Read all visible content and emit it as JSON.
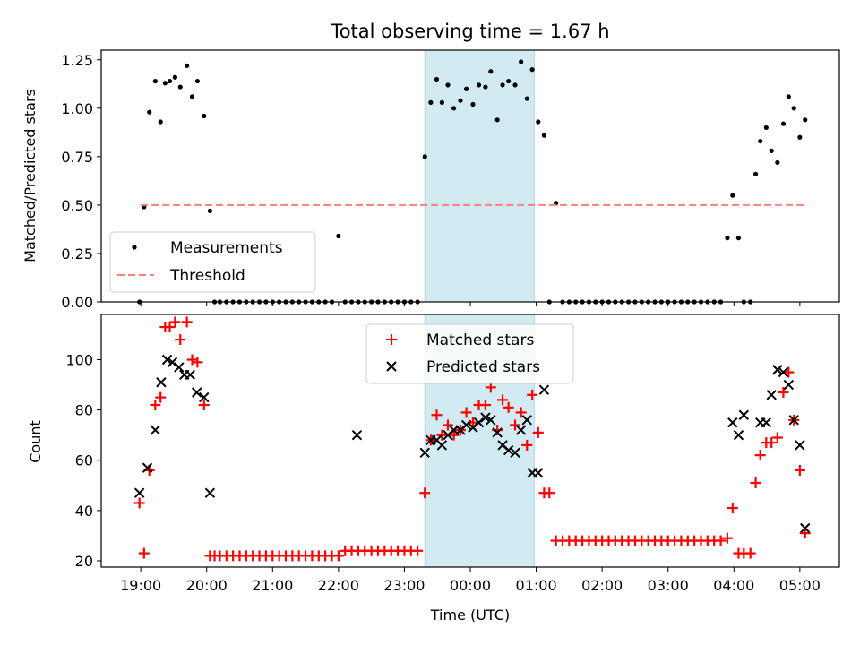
{
  "figure": {
    "title": "Total observing time = 1.67 h",
    "xlabel": "Time (UTC)",
    "x_tick_labels": [
      "19:00",
      "20:00",
      "21:00",
      "22:00",
      "23:00",
      "00:00",
      "01:00",
      "02:00",
      "03:00",
      "04:00",
      "05:00"
    ],
    "shaded_interval_color": "#add8e6"
  },
  "chart_data": [
    {
      "type": "scatter",
      "panel": "top",
      "xlabel": "",
      "ylabel": "Matched/Predicted stars",
      "x_unit": "hours after 19:00 UTC",
      "xlim": [
        -0.6,
        10.6
      ],
      "ylim": [
        0.0,
        1.3
      ],
      "y_ticks": [
        "0.00",
        "0.25",
        "0.50",
        "0.75",
        "1.00",
        "1.25"
      ],
      "shaded_x_range": [
        4.31,
        5.97
      ],
      "grid": false,
      "legend_position": "lower-left",
      "series": [
        {
          "name": "Measurements",
          "kind": "points",
          "color": "#000000",
          "x": [
            -0.02,
            0.05,
            0.13,
            0.22,
            0.3,
            0.37,
            0.44,
            0.52,
            0.6,
            0.7,
            0.78,
            0.86,
            0.96,
            1.05,
            1.12,
            1.2,
            1.3,
            1.4,
            1.5,
            1.6,
            1.7,
            1.8,
            1.9,
            2.0,
            2.1,
            2.2,
            2.3,
            2.4,
            2.5,
            2.6,
            2.7,
            2.8,
            2.9,
            3.0,
            3.1,
            3.2,
            3.3,
            3.4,
            3.5,
            3.6,
            3.7,
            3.8,
            3.9,
            4.0,
            4.1,
            4.2,
            4.31,
            4.4,
            4.49,
            4.57,
            4.66,
            4.75,
            4.85,
            4.94,
            5.04,
            5.13,
            5.23,
            5.31,
            5.41,
            5.49,
            5.58,
            5.68,
            5.77,
            5.86,
            5.94,
            6.03,
            6.12,
            6.2,
            6.3,
            6.4,
            6.5,
            6.6,
            6.7,
            6.8,
            6.9,
            7.0,
            7.1,
            7.2,
            7.3,
            7.4,
            7.5,
            7.6,
            7.7,
            7.8,
            7.9,
            8.0,
            8.1,
            8.2,
            8.3,
            8.4,
            8.5,
            8.6,
            8.7,
            8.8,
            8.9,
            8.98,
            9.07,
            9.15,
            9.25,
            9.33,
            9.4,
            9.49,
            9.57,
            9.66,
            9.75,
            9.83,
            9.91,
            10.0,
            10.08
          ],
          "y": [
            0.0,
            0.49,
            0.98,
            1.14,
            0.93,
            1.13,
            1.14,
            1.16,
            1.11,
            1.22,
            1.06,
            1.14,
            0.96,
            0.47,
            0.0,
            0.0,
            0.0,
            0.0,
            0.0,
            0.0,
            0.0,
            0.0,
            0.0,
            0.0,
            0.0,
            0.0,
            0.0,
            0.0,
            0.0,
            0.0,
            0.0,
            0.0,
            0.0,
            0.34,
            0.0,
            0.0,
            0.0,
            0.0,
            0.0,
            0.0,
            0.0,
            0.0,
            0.0,
            0.0,
            0.0,
            0.0,
            0.75,
            1.03,
            1.15,
            1.03,
            1.12,
            1.0,
            1.04,
            1.1,
            1.02,
            1.12,
            1.11,
            1.19,
            0.94,
            1.12,
            1.14,
            1.12,
            1.24,
            1.05,
            1.2,
            0.93,
            0.86,
            0.0,
            0.51,
            0.0,
            0.0,
            0.0,
            0.0,
            0.0,
            0.0,
            0.0,
            0.0,
            0.0,
            0.0,
            0.0,
            0.0,
            0.0,
            0.0,
            0.0,
            0.0,
            0.0,
            0.0,
            0.0,
            0.0,
            0.0,
            0.0,
            0.0,
            0.0,
            0.0,
            0.33,
            0.55,
            0.33,
            0.0,
            0.0,
            0.66,
            0.83,
            0.9,
            0.78,
            0.72,
            0.92,
            1.06,
            1.0,
            0.85,
            0.94
          ]
        },
        {
          "name": "Threshold",
          "kind": "dashed-line",
          "color": "#ff7f7f",
          "x": [
            0.0,
            10.1
          ],
          "y": [
            0.5,
            0.5
          ]
        }
      ]
    },
    {
      "type": "scatter",
      "panel": "bottom",
      "xlabel": "Time (UTC)",
      "ylabel": "Count",
      "x_unit": "hours after 19:00 UTC",
      "xlim": [
        -0.6,
        10.6
      ],
      "ylim": [
        17.5,
        118
      ],
      "y_ticks": [
        "20",
        "40",
        "60",
        "80",
        "100"
      ],
      "shaded_x_range": [
        4.31,
        5.97
      ],
      "grid": false,
      "legend_position": "upper-center",
      "series": [
        {
          "name": "Matched stars",
          "kind": "plus-markers",
          "color": "#ff0000",
          "x": [
            -0.02,
            0.05,
            0.13,
            0.22,
            0.3,
            0.37,
            0.44,
            0.52,
            0.6,
            0.7,
            0.78,
            0.86,
            0.96,
            1.05,
            1.12,
            1.2,
            1.3,
            1.4,
            1.5,
            1.6,
            1.7,
            1.8,
            1.9,
            2.0,
            2.1,
            2.2,
            2.3,
            2.4,
            2.5,
            2.6,
            2.7,
            2.8,
            2.9,
            3.0,
            3.1,
            3.2,
            3.3,
            3.4,
            3.5,
            3.6,
            3.7,
            3.8,
            3.9,
            4.0,
            4.1,
            4.2,
            4.31,
            4.4,
            4.49,
            4.57,
            4.66,
            4.75,
            4.85,
            4.94,
            5.04,
            5.13,
            5.23,
            5.31,
            5.41,
            5.49,
            5.58,
            5.68,
            5.77,
            5.86,
            5.94,
            6.03,
            6.12,
            6.2,
            6.3,
            6.4,
            6.5,
            6.6,
            6.7,
            6.8,
            6.9,
            7.0,
            7.1,
            7.2,
            7.3,
            7.4,
            7.5,
            7.6,
            7.7,
            7.8,
            7.9,
            8.0,
            8.1,
            8.2,
            8.3,
            8.4,
            8.5,
            8.6,
            8.7,
            8.8,
            8.9,
            8.98,
            9.07,
            9.15,
            9.25,
            9.33,
            9.4,
            9.49,
            9.57,
            9.66,
            9.75,
            9.83,
            9.91,
            10.0,
            10.08
          ],
          "y": [
            43,
            23,
            56,
            82,
            85,
            113,
            113,
            115,
            108,
            115,
            100,
            99,
            82,
            22,
            22,
            22,
            22,
            22,
            22,
            22,
            22,
            22,
            22,
            22,
            22,
            22,
            22,
            22,
            22,
            22,
            22,
            22,
            22,
            22,
            24,
            24,
            24,
            24,
            24,
            24,
            24,
            24,
            24,
            24,
            24,
            24,
            47,
            68,
            78,
            70,
            74,
            70,
            72,
            79,
            75,
            82,
            82,
            89,
            72,
            84,
            81,
            74,
            79,
            66,
            86,
            71,
            47,
            47,
            28,
            28,
            28,
            28,
            28,
            28,
            28,
            28,
            28,
            28,
            28,
            28,
            28,
            28,
            28,
            28,
            28,
            28,
            28,
            28,
            28,
            28,
            28,
            28,
            28,
            28,
            29,
            41,
            23,
            23,
            23,
            51,
            62,
            67,
            67,
            69,
            87,
            95,
            76,
            56,
            31
          ]
        },
        {
          "name": "Predicted stars",
          "kind": "x-markers",
          "color": "#000000",
          "x": [
            -0.02,
            0.1,
            0.22,
            0.31,
            0.4,
            0.48,
            0.58,
            0.66,
            0.75,
            0.85,
            0.96,
            1.05,
            3.28,
            4.31,
            4.4,
            4.49,
            4.57,
            4.66,
            4.75,
            4.85,
            4.94,
            5.04,
            5.13,
            5.23,
            5.31,
            5.41,
            5.49,
            5.58,
            5.68,
            5.77,
            5.86,
            5.94,
            6.03,
            6.12,
            8.98,
            9.07,
            9.15,
            9.4,
            9.49,
            9.57,
            9.66,
            9.75,
            9.83,
            9.91,
            10.0,
            10.08
          ],
          "y": [
            47,
            57,
            72,
            91,
            100,
            99,
            97,
            94,
            94,
            87,
            85,
            47,
            70,
            63,
            68,
            68,
            66,
            70,
            72,
            72,
            74,
            73,
            75,
            77,
            76,
            71,
            66,
            64,
            63,
            72,
            76,
            55,
            55,
            88,
            75,
            70,
            78,
            75,
            75,
            86,
            96,
            95,
            90,
            76,
            66,
            33
          ]
        }
      ]
    }
  ]
}
